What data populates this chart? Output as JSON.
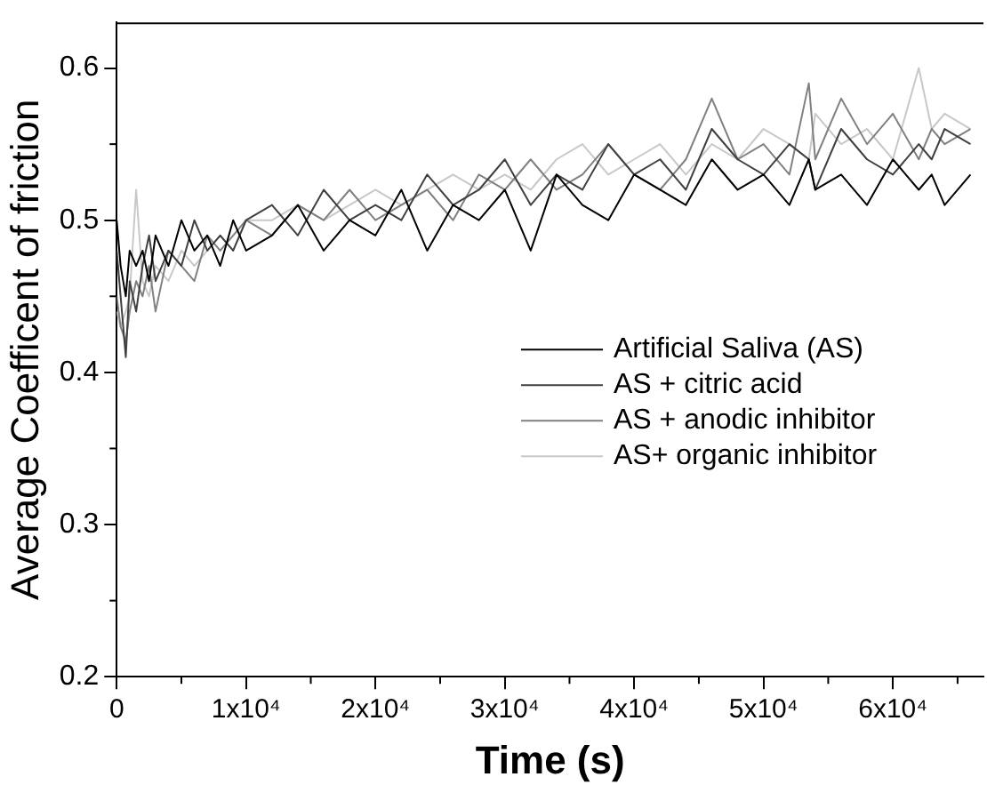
{
  "chart_data": {
    "type": "line",
    "xlabel": "Time (s)",
    "ylabel": "Average Coefficent of friction",
    "x": [
      0,
      300,
      700,
      1000,
      1500,
      2000,
      2500,
      3000,
      4000,
      5000,
      6000,
      7000,
      8000,
      9000,
      10000,
      12000,
      14000,
      16000,
      18000,
      20000,
      22000,
      24000,
      26000,
      28000,
      30000,
      32000,
      34000,
      36000,
      38000,
      40000,
      42000,
      44000,
      46000,
      48000,
      50000,
      52000,
      53500,
      54000,
      56000,
      58000,
      60000,
      62000,
      63000,
      64000,
      66000
    ],
    "series": [
      {
        "name": "Artificial Saliva (AS)",
        "color": "#000000",
        "values": [
          0.5,
          0.47,
          0.45,
          0.48,
          0.47,
          0.48,
          0.46,
          0.49,
          0.47,
          0.5,
          0.48,
          0.49,
          0.47,
          0.5,
          0.48,
          0.49,
          0.51,
          0.48,
          0.5,
          0.49,
          0.52,
          0.48,
          0.51,
          0.5,
          0.52,
          0.48,
          0.53,
          0.51,
          0.5,
          0.53,
          0.52,
          0.51,
          0.54,
          0.52,
          0.53,
          0.51,
          0.54,
          0.52,
          0.53,
          0.51,
          0.54,
          0.52,
          0.53,
          0.51,
          0.53
        ]
      },
      {
        "name": "AS + citric acid",
        "color": "#404040",
        "values": [
          0.48,
          0.45,
          0.41,
          0.46,
          0.44,
          0.47,
          0.49,
          0.46,
          0.48,
          0.47,
          0.5,
          0.48,
          0.49,
          0.48,
          0.5,
          0.51,
          0.49,
          0.52,
          0.5,
          0.51,
          0.5,
          0.53,
          0.51,
          0.52,
          0.54,
          0.51,
          0.53,
          0.52,
          0.55,
          0.53,
          0.54,
          0.52,
          0.56,
          0.54,
          0.53,
          0.55,
          0.54,
          0.52,
          0.56,
          0.54,
          0.53,
          0.55,
          0.54,
          0.56,
          0.55
        ]
      },
      {
        "name": "AS + anodic inhibitor",
        "color": "#808080",
        "values": [
          0.45,
          0.43,
          0.42,
          0.44,
          0.46,
          0.45,
          0.47,
          0.44,
          0.48,
          0.47,
          0.46,
          0.49,
          0.48,
          0.49,
          0.5,
          0.49,
          0.51,
          0.5,
          0.52,
          0.5,
          0.51,
          0.52,
          0.5,
          0.53,
          0.52,
          0.54,
          0.52,
          0.53,
          0.55,
          0.53,
          0.52,
          0.54,
          0.58,
          0.54,
          0.55,
          0.53,
          0.59,
          0.54,
          0.58,
          0.55,
          0.57,
          0.54,
          0.56,
          0.55,
          0.56
        ]
      },
      {
        "name": "AS+ organic inhibitor",
        "color": "#c8c8c8",
        "values": [
          0.44,
          0.43,
          0.44,
          0.45,
          0.52,
          0.46,
          0.45,
          0.47,
          0.46,
          0.48,
          0.47,
          0.48,
          0.49,
          0.48,
          0.5,
          0.5,
          0.51,
          0.5,
          0.51,
          0.52,
          0.51,
          0.52,
          0.53,
          0.52,
          0.53,
          0.52,
          0.54,
          0.55,
          0.53,
          0.54,
          0.55,
          0.53,
          0.55,
          0.54,
          0.56,
          0.55,
          0.54,
          0.57,
          0.55,
          0.56,
          0.54,
          0.6,
          0.56,
          0.57,
          0.56
        ]
      }
    ],
    "xlim": [
      0,
      67000
    ],
    "xticks": [
      0,
      {
        "value": 10000,
        "label": "1x10⁴"
      },
      {
        "value": 20000,
        "label": "2x10⁴"
      },
      {
        "value": 30000,
        "label": "3x10⁴"
      },
      {
        "value": 40000,
        "label": "4x10⁴"
      },
      {
        "value": 50000,
        "label": "5x10⁴"
      },
      {
        "value": 60000,
        "label": "6x10⁴"
      }
    ],
    "ylim": [
      0.2,
      0.63
    ],
    "yticks": [
      0.2,
      0.3,
      0.4,
      0.5,
      0.6
    ],
    "grid": false,
    "legend": "right",
    "marker": "none",
    "line_style": "solid"
  }
}
